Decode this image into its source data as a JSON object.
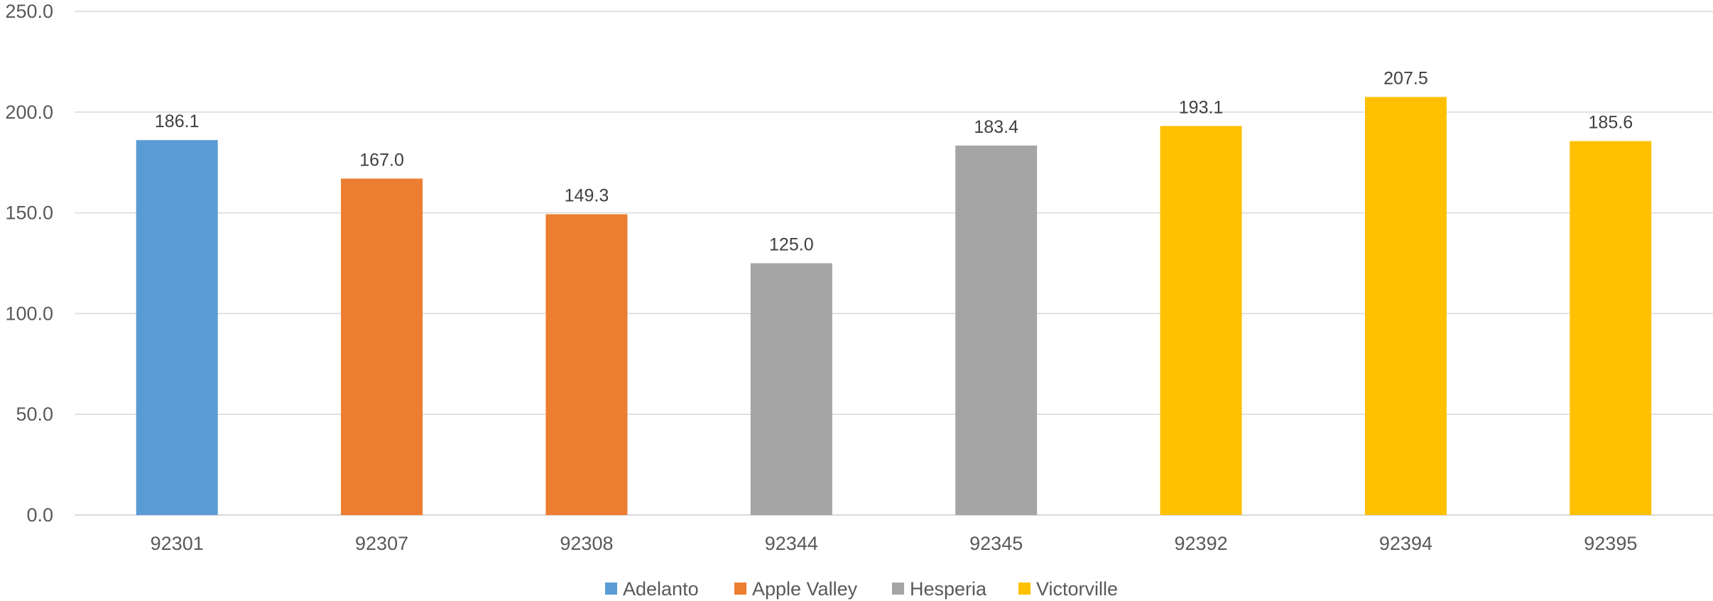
{
  "chart_data": {
    "type": "bar",
    "title": "",
    "xlabel": "",
    "ylabel": "",
    "ylim": [
      0,
      250
    ],
    "yticks": [
      0,
      50,
      100,
      150,
      200,
      250
    ],
    "ytick_labels": [
      "0.0",
      "50.0",
      "100.0",
      "150.0",
      "200.0",
      "250.0"
    ],
    "grid": true,
    "legend_position": "bottom",
    "categories": [
      "92301",
      "92307",
      "92308",
      "92344",
      "92345",
      "92392",
      "92394",
      "92395"
    ],
    "values": [
      186.1,
      167.0,
      149.3,
      125.0,
      183.4,
      193.1,
      207.5,
      185.6
    ],
    "value_labels": [
      "186.1",
      "167.0",
      "149.3",
      "125.0",
      "183.4",
      "193.1",
      "207.5",
      "185.6"
    ],
    "bar_groups": [
      "Adelanto",
      "Apple Valley",
      "Apple Valley",
      "Hesperia",
      "Hesperia",
      "Victorville",
      "Victorville",
      "Victorville"
    ],
    "legend": [
      {
        "name": "Adelanto",
        "color": "#5b9bd5"
      },
      {
        "name": "Apple Valley",
        "color": "#ed7d31"
      },
      {
        "name": "Hesperia",
        "color": "#a5a5a5"
      },
      {
        "name": "Victorville",
        "color": "#ffc000"
      }
    ]
  }
}
